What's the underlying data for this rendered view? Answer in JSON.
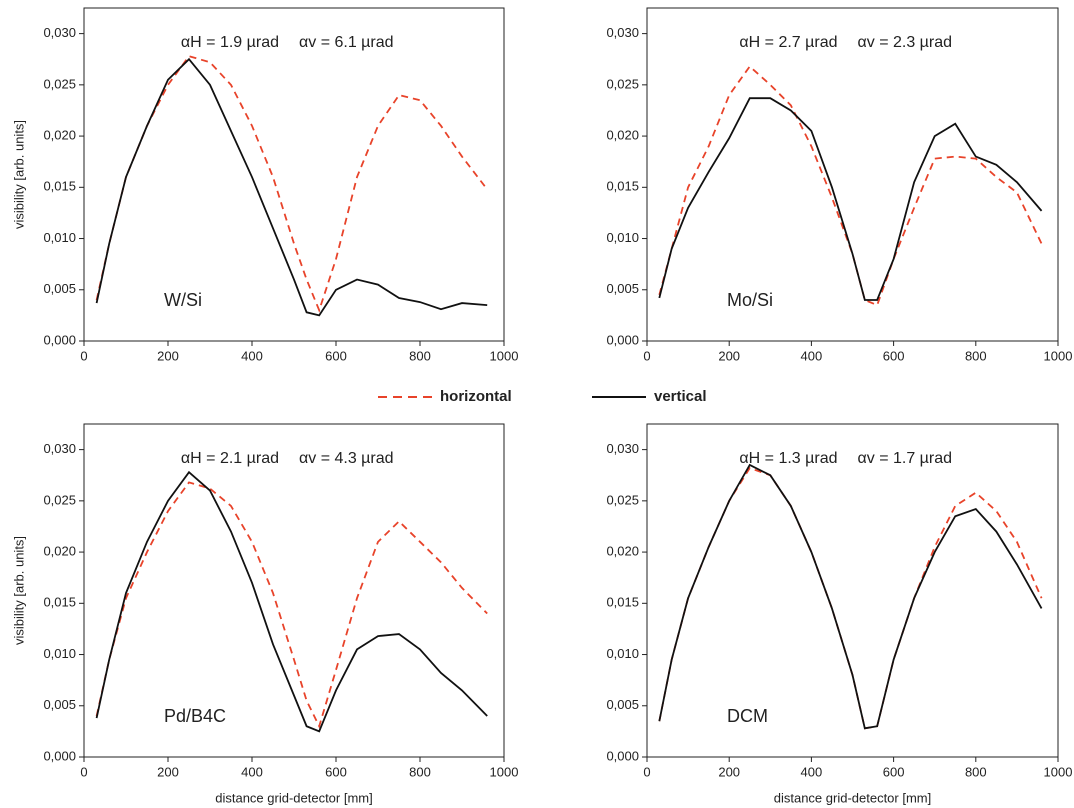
{
  "chart_data": [
    {
      "type": "line",
      "annotations": [
        "αH = 1.9 µrad",
        "αv = 6.1 µrad"
      ],
      "panel_label": "W/Si",
      "y_label": "visibility [arb. units]",
      "x": [
        30,
        60,
        100,
        150,
        200,
        250,
        300,
        350,
        400,
        450,
        500,
        530,
        560,
        600,
        650,
        700,
        750,
        800,
        850,
        900,
        960
      ],
      "series": [
        {
          "name": "horizontal",
          "color": "#e8432a",
          "dashed": true,
          "values": [
            0.004,
            0.0095,
            0.016,
            0.021,
            0.025,
            0.0278,
            0.0272,
            0.025,
            0.021,
            0.016,
            0.0095,
            0.006,
            0.003,
            0.008,
            0.016,
            0.021,
            0.024,
            0.0235,
            0.021,
            0.018,
            0.0148
          ]
        },
        {
          "name": "vertical",
          "color": "#111111",
          "dashed": false,
          "values": [
            0.0037,
            0.0095,
            0.016,
            0.021,
            0.0255,
            0.0275,
            0.025,
            0.0205,
            0.016,
            0.011,
            0.006,
            0.0028,
            0.0025,
            0.005,
            0.006,
            0.0055,
            0.0042,
            0.0038,
            0.0031,
            0.0037,
            0.0035
          ]
        }
      ],
      "xlim": [
        0,
        1000
      ],
      "xticks": [
        0,
        200,
        400,
        600,
        800,
        1000
      ],
      "ylim": [
        0,
        0.0325
      ],
      "yticks": [
        {
          "value": 0,
          "label": "0,000"
        },
        {
          "value": 0.005,
          "label": "0,005"
        },
        {
          "value": 0.01,
          "label": "0,010"
        },
        {
          "value": 0.015,
          "label": "0,015"
        },
        {
          "value": 0.02,
          "label": "0,020"
        },
        {
          "value": 0.025,
          "label": "0,025"
        },
        {
          "value": 0.03,
          "label": "0,030"
        }
      ]
    },
    {
      "type": "line",
      "annotations": [
        "αH = 2.7 µrad",
        "αv = 2.3 µrad"
      ],
      "panel_label": "Mo/Si",
      "x": [
        30,
        60,
        100,
        150,
        200,
        250,
        300,
        350,
        400,
        450,
        500,
        530,
        560,
        600,
        650,
        700,
        750,
        800,
        850,
        900,
        960
      ],
      "series": [
        {
          "color": "#e8432a",
          "dashed": true,
          "values": [
            0.0045,
            0.009,
            0.015,
            0.019,
            0.024,
            0.0268,
            0.025,
            0.023,
            0.019,
            0.014,
            0.0085,
            0.004,
            0.0035,
            0.008,
            0.013,
            0.0178,
            0.018,
            0.0178,
            0.016,
            0.0145,
            0.0095
          ]
        },
        {
          "color": "#111111",
          "dashed": false,
          "values": [
            0.0042,
            0.009,
            0.013,
            0.0165,
            0.0198,
            0.0237,
            0.0237,
            0.0225,
            0.0205,
            0.015,
            0.0085,
            0.004,
            0.004,
            0.008,
            0.0155,
            0.02,
            0.0212,
            0.018,
            0.0172,
            0.0155,
            0.0127
          ]
        }
      ],
      "xlim": [
        0,
        1000
      ],
      "xticks": [
        0,
        200,
        400,
        600,
        800,
        1000
      ],
      "ylim": [
        0,
        0.0325
      ],
      "yticks": [
        {
          "value": 0,
          "label": "0,000"
        },
        {
          "value": 0.005,
          "label": "0,005"
        },
        {
          "value": 0.01,
          "label": "0,010"
        },
        {
          "value": 0.015,
          "label": "0,015"
        },
        {
          "value": 0.02,
          "label": "0,020"
        },
        {
          "value": 0.025,
          "label": "0,025"
        },
        {
          "value": 0.03,
          "label": "0,030"
        }
      ]
    },
    {
      "type": "line",
      "annotations": [
        "αH = 2.1 µrad",
        "αv = 4.3 µrad"
      ],
      "panel_label": "Pd/B4C",
      "y_label": "visibility [arb. units]",
      "x_label": "distance grid-detector [mm]",
      "x": [
        30,
        60,
        100,
        150,
        200,
        250,
        300,
        350,
        400,
        450,
        500,
        530,
        560,
        600,
        650,
        700,
        750,
        800,
        850,
        900,
        960
      ],
      "series": [
        {
          "color": "#e8432a",
          "dashed": true,
          "values": [
            0.004,
            0.0095,
            0.0155,
            0.02,
            0.024,
            0.0268,
            0.0262,
            0.0245,
            0.021,
            0.016,
            0.0095,
            0.0055,
            0.003,
            0.0085,
            0.0155,
            0.021,
            0.023,
            0.021,
            0.019,
            0.0165,
            0.014
          ]
        },
        {
          "color": "#111111",
          "dashed": false,
          "values": [
            0.0038,
            0.0095,
            0.016,
            0.021,
            0.025,
            0.0278,
            0.026,
            0.022,
            0.017,
            0.011,
            0.006,
            0.003,
            0.0025,
            0.0065,
            0.0105,
            0.0118,
            0.012,
            0.0105,
            0.0082,
            0.0065,
            0.004
          ]
        }
      ],
      "xlim": [
        0,
        1000
      ],
      "xticks": [
        0,
        200,
        400,
        600,
        800,
        1000
      ],
      "ylim": [
        0,
        0.0325
      ],
      "yticks": [
        {
          "value": 0,
          "label": "0,000"
        },
        {
          "value": 0.005,
          "label": "0,005"
        },
        {
          "value": 0.01,
          "label": "0,010"
        },
        {
          "value": 0.015,
          "label": "0,015"
        },
        {
          "value": 0.02,
          "label": "0,020"
        },
        {
          "value": 0.025,
          "label": "0,025"
        },
        {
          "value": 0.03,
          "label": "0,030"
        }
      ]
    },
    {
      "type": "line",
      "annotations": [
        "αH = 1.3 µrad",
        "αv = 1.7 µrad"
      ],
      "panel_label": "DCM",
      "x_label": "distance grid-detector [mm]",
      "x": [
        30,
        60,
        100,
        150,
        200,
        250,
        300,
        350,
        400,
        450,
        500,
        530,
        560,
        600,
        650,
        700,
        750,
        800,
        850,
        900,
        960
      ],
      "series": [
        {
          "color": "#e8432a",
          "dashed": true,
          "values": [
            0.0035,
            0.0095,
            0.0155,
            0.0205,
            0.025,
            0.0282,
            0.0275,
            0.0245,
            0.02,
            0.0145,
            0.008,
            0.0028,
            0.003,
            0.0095,
            0.0155,
            0.0205,
            0.0245,
            0.0258,
            0.024,
            0.021,
            0.0155
          ]
        },
        {
          "color": "#111111",
          "dashed": false,
          "values": [
            0.0035,
            0.0095,
            0.0155,
            0.0205,
            0.025,
            0.0285,
            0.0275,
            0.0245,
            0.02,
            0.0145,
            0.008,
            0.0028,
            0.003,
            0.0095,
            0.0155,
            0.02,
            0.0235,
            0.0242,
            0.022,
            0.0188,
            0.0145
          ]
        }
      ],
      "xlim": [
        0,
        1000
      ],
      "xticks": [
        0,
        200,
        400,
        600,
        800,
        1000
      ],
      "ylim": [
        0,
        0.0325
      ],
      "yticks": [
        {
          "value": 0,
          "label": "0,000"
        },
        {
          "value": 0.005,
          "label": "0,005"
        },
        {
          "value": 0.01,
          "label": "0,010"
        },
        {
          "value": 0.015,
          "label": "0,015"
        },
        {
          "value": 0.02,
          "label": "0,020"
        },
        {
          "value": 0.025,
          "label": "0,025"
        },
        {
          "value": 0.03,
          "label": "0,030"
        }
      ]
    }
  ]
}
